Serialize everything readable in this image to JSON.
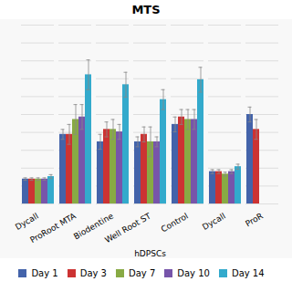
{
  "chart_data": {
    "type": "bar",
    "title": "MTS",
    "xlabel": "hDPSCs",
    "categories": [
      "Dycall",
      "ProRoot MTA",
      "Biodentine",
      "Well Root ST",
      "Control",
      "Dycall",
      "ProR"
    ],
    "series": [
      {
        "name": "Day 1",
        "color": "#4363AA",
        "values": [
          0.1,
          0.28,
          0.25,
          0.25,
          0.32,
          0.13,
          0.36
        ],
        "errors": [
          0.005,
          0.02,
          0.03,
          0.02,
          0.03,
          0.008,
          0.03
        ]
      },
      {
        "name": "Day 3",
        "color": "#CC3333",
        "values": [
          0.1,
          0.28,
          0.3,
          0.28,
          0.35,
          0.13,
          0.3
        ],
        "errors": [
          0.005,
          0.04,
          0.03,
          0.03,
          0.03,
          0.008,
          0.04
        ]
      },
      {
        "name": "Day 7",
        "color": "#88AA44",
        "values": [
          0.1,
          0.34,
          0.3,
          0.25,
          0.34,
          0.12,
          null
        ],
        "errors": [
          0.005,
          0.06,
          0.04,
          0.06,
          0.04,
          0.008,
          null
        ]
      },
      {
        "name": "Day 10",
        "color": "#7755AA",
        "values": [
          0.1,
          0.35,
          0.29,
          0.25,
          0.34,
          0.13,
          null
        ],
        "errors": [
          0.005,
          0.05,
          0.03,
          0.02,
          0.04,
          0.008,
          null
        ]
      },
      {
        "name": "Day 14",
        "color": "#33AACC",
        "values": [
          0.11,
          0.52,
          0.48,
          0.42,
          0.5,
          0.15,
          null
        ],
        "errors": [
          0.008,
          0.06,
          0.05,
          0.04,
          0.05,
          0.01,
          null
        ]
      }
    ],
    "ylim": [
      0,
      0.72
    ],
    "yticks": [
      0,
      0.072,
      0.144,
      0.216,
      0.288,
      0.36,
      0.432,
      0.504,
      0.576,
      0.648,
      0.72
    ],
    "grid": true,
    "legend": "bottom",
    "tick_labels": "x"
  }
}
